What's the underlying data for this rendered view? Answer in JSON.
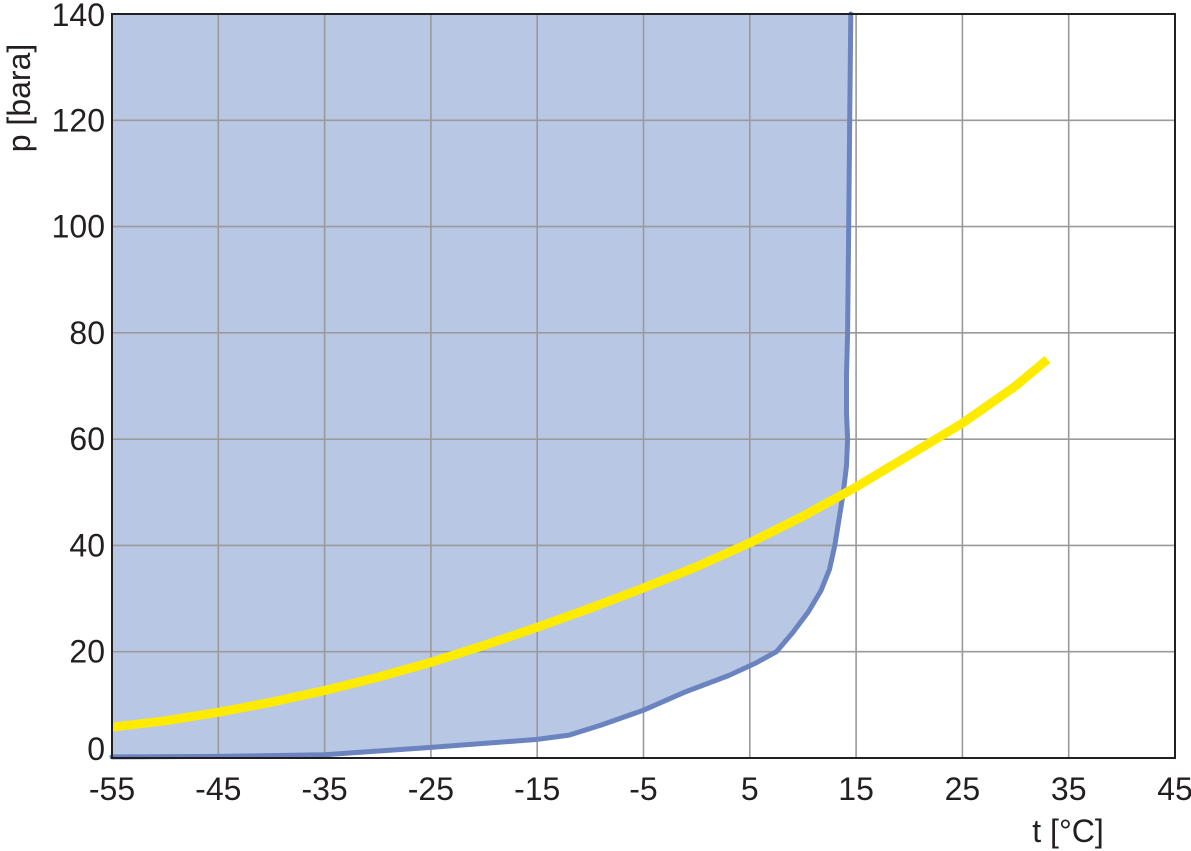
{
  "chart_data": {
    "type": "area",
    "title": "",
    "xlabel": "t [°C]",
    "ylabel": "p [bara]",
    "xlim": [
      -55,
      45
    ],
    "ylim": [
      0,
      140
    ],
    "x_ticks": [
      -55,
      -45,
      -35,
      -25,
      -15,
      -5,
      5,
      15,
      25,
      35,
      45
    ],
    "y_ticks": [
      0,
      20,
      40,
      60,
      80,
      100,
      120,
      140
    ],
    "x_tick_labels": [
      "-55",
      "-45",
      "-35",
      "-25",
      "-15",
      "-5",
      "5",
      "15",
      "25",
      "35",
      "45"
    ],
    "y_tick_labels": [
      "0",
      "20",
      "40",
      "60",
      "80",
      "100",
      "120",
      "140"
    ],
    "grid": true,
    "series": [
      {
        "kind": "filled-region",
        "color": "#6b83bf",
        "fill": "#b8c7e4",
        "points": [
          [
            -55,
            0.2
          ],
          [
            -45,
            0.3
          ],
          [
            -35,
            0.6
          ],
          [
            -25,
            2.0
          ],
          [
            -15,
            3.5
          ],
          [
            -12,
            4.3
          ],
          [
            -9,
            6.2
          ],
          [
            -5,
            9.0
          ],
          [
            -1,
            12.5
          ],
          [
            3,
            15.5
          ],
          [
            5.5,
            17.8
          ],
          [
            7.5,
            20.0
          ],
          [
            9,
            23.5
          ],
          [
            10.5,
            27.5
          ],
          [
            11.7,
            31.5
          ],
          [
            12.5,
            35.5
          ],
          [
            13,
            40.0
          ],
          [
            13.4,
            45.0
          ],
          [
            13.8,
            50.0
          ],
          [
            14.1,
            55.0
          ],
          [
            14.2,
            60.0
          ],
          [
            14.1,
            65.0
          ],
          [
            14.1,
            72.0
          ],
          [
            14.2,
            80.0
          ],
          [
            14.3,
            100.0
          ],
          [
            14.4,
            120.0
          ],
          [
            14.5,
            140.0
          ]
        ]
      },
      {
        "kind": "line",
        "color": "#ffeb00",
        "points": [
          [
            -55,
            5.8
          ],
          [
            -50,
            7.0
          ],
          [
            -45,
            8.6
          ],
          [
            -40,
            10.5
          ],
          [
            -35,
            12.7
          ],
          [
            -30,
            15.2
          ],
          [
            -25,
            18.0
          ],
          [
            -20,
            21.2
          ],
          [
            -15,
            24.6
          ],
          [
            -10,
            28.2
          ],
          [
            -5,
            32.0
          ],
          [
            0,
            36.0
          ],
          [
            5,
            40.5
          ],
          [
            10,
            45.5
          ],
          [
            15,
            51.0
          ],
          [
            20,
            57.0
          ],
          [
            25,
            63.0
          ],
          [
            30,
            70.0
          ],
          [
            33,
            75.0
          ]
        ]
      }
    ]
  }
}
